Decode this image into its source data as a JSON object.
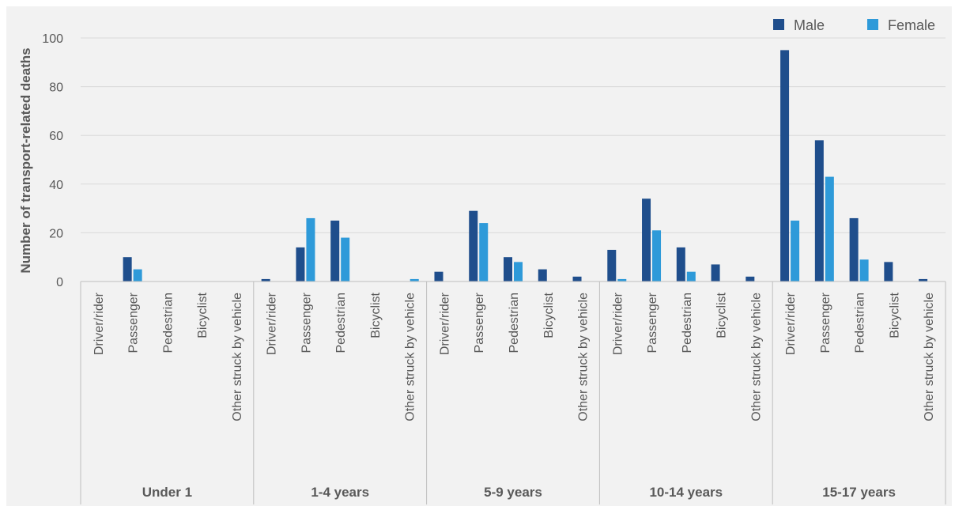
{
  "chart_data": {
    "type": "bar",
    "title": "",
    "xlabel": "",
    "ylabel": "Number of transport-related deaths",
    "ylim": [
      0,
      100
    ],
    "yticks": [
      0,
      20,
      40,
      60,
      80,
      100
    ],
    "grid": true,
    "legend_position": "top-right",
    "colors": {
      "Male": "#1f4e8c",
      "Female": "#2e9ad9"
    },
    "groups": [
      "Under 1",
      "1-4 years",
      "5-9 years",
      "10-14 years",
      "15-17 years"
    ],
    "categories": [
      "Driver/rider",
      "Passenger",
      "Pedestrian",
      "Bicyclist",
      "Other struck by vehicle"
    ],
    "series": [
      {
        "name": "Male",
        "values": [
          [
            0,
            10,
            0,
            0,
            0
          ],
          [
            1,
            14,
            25,
            0,
            0
          ],
          [
            4,
            29,
            10,
            5,
            2
          ],
          [
            13,
            34,
            14,
            7,
            2
          ],
          [
            95,
            58,
            26,
            8,
            1
          ]
        ]
      },
      {
        "name": "Female",
        "values": [
          [
            0,
            5,
            0,
            0,
            0
          ],
          [
            0,
            26,
            18,
            0,
            1
          ],
          [
            0,
            24,
            8,
            0,
            0
          ],
          [
            1,
            21,
            4,
            0,
            0
          ],
          [
            25,
            43,
            9,
            0,
            0
          ]
        ]
      }
    ]
  }
}
